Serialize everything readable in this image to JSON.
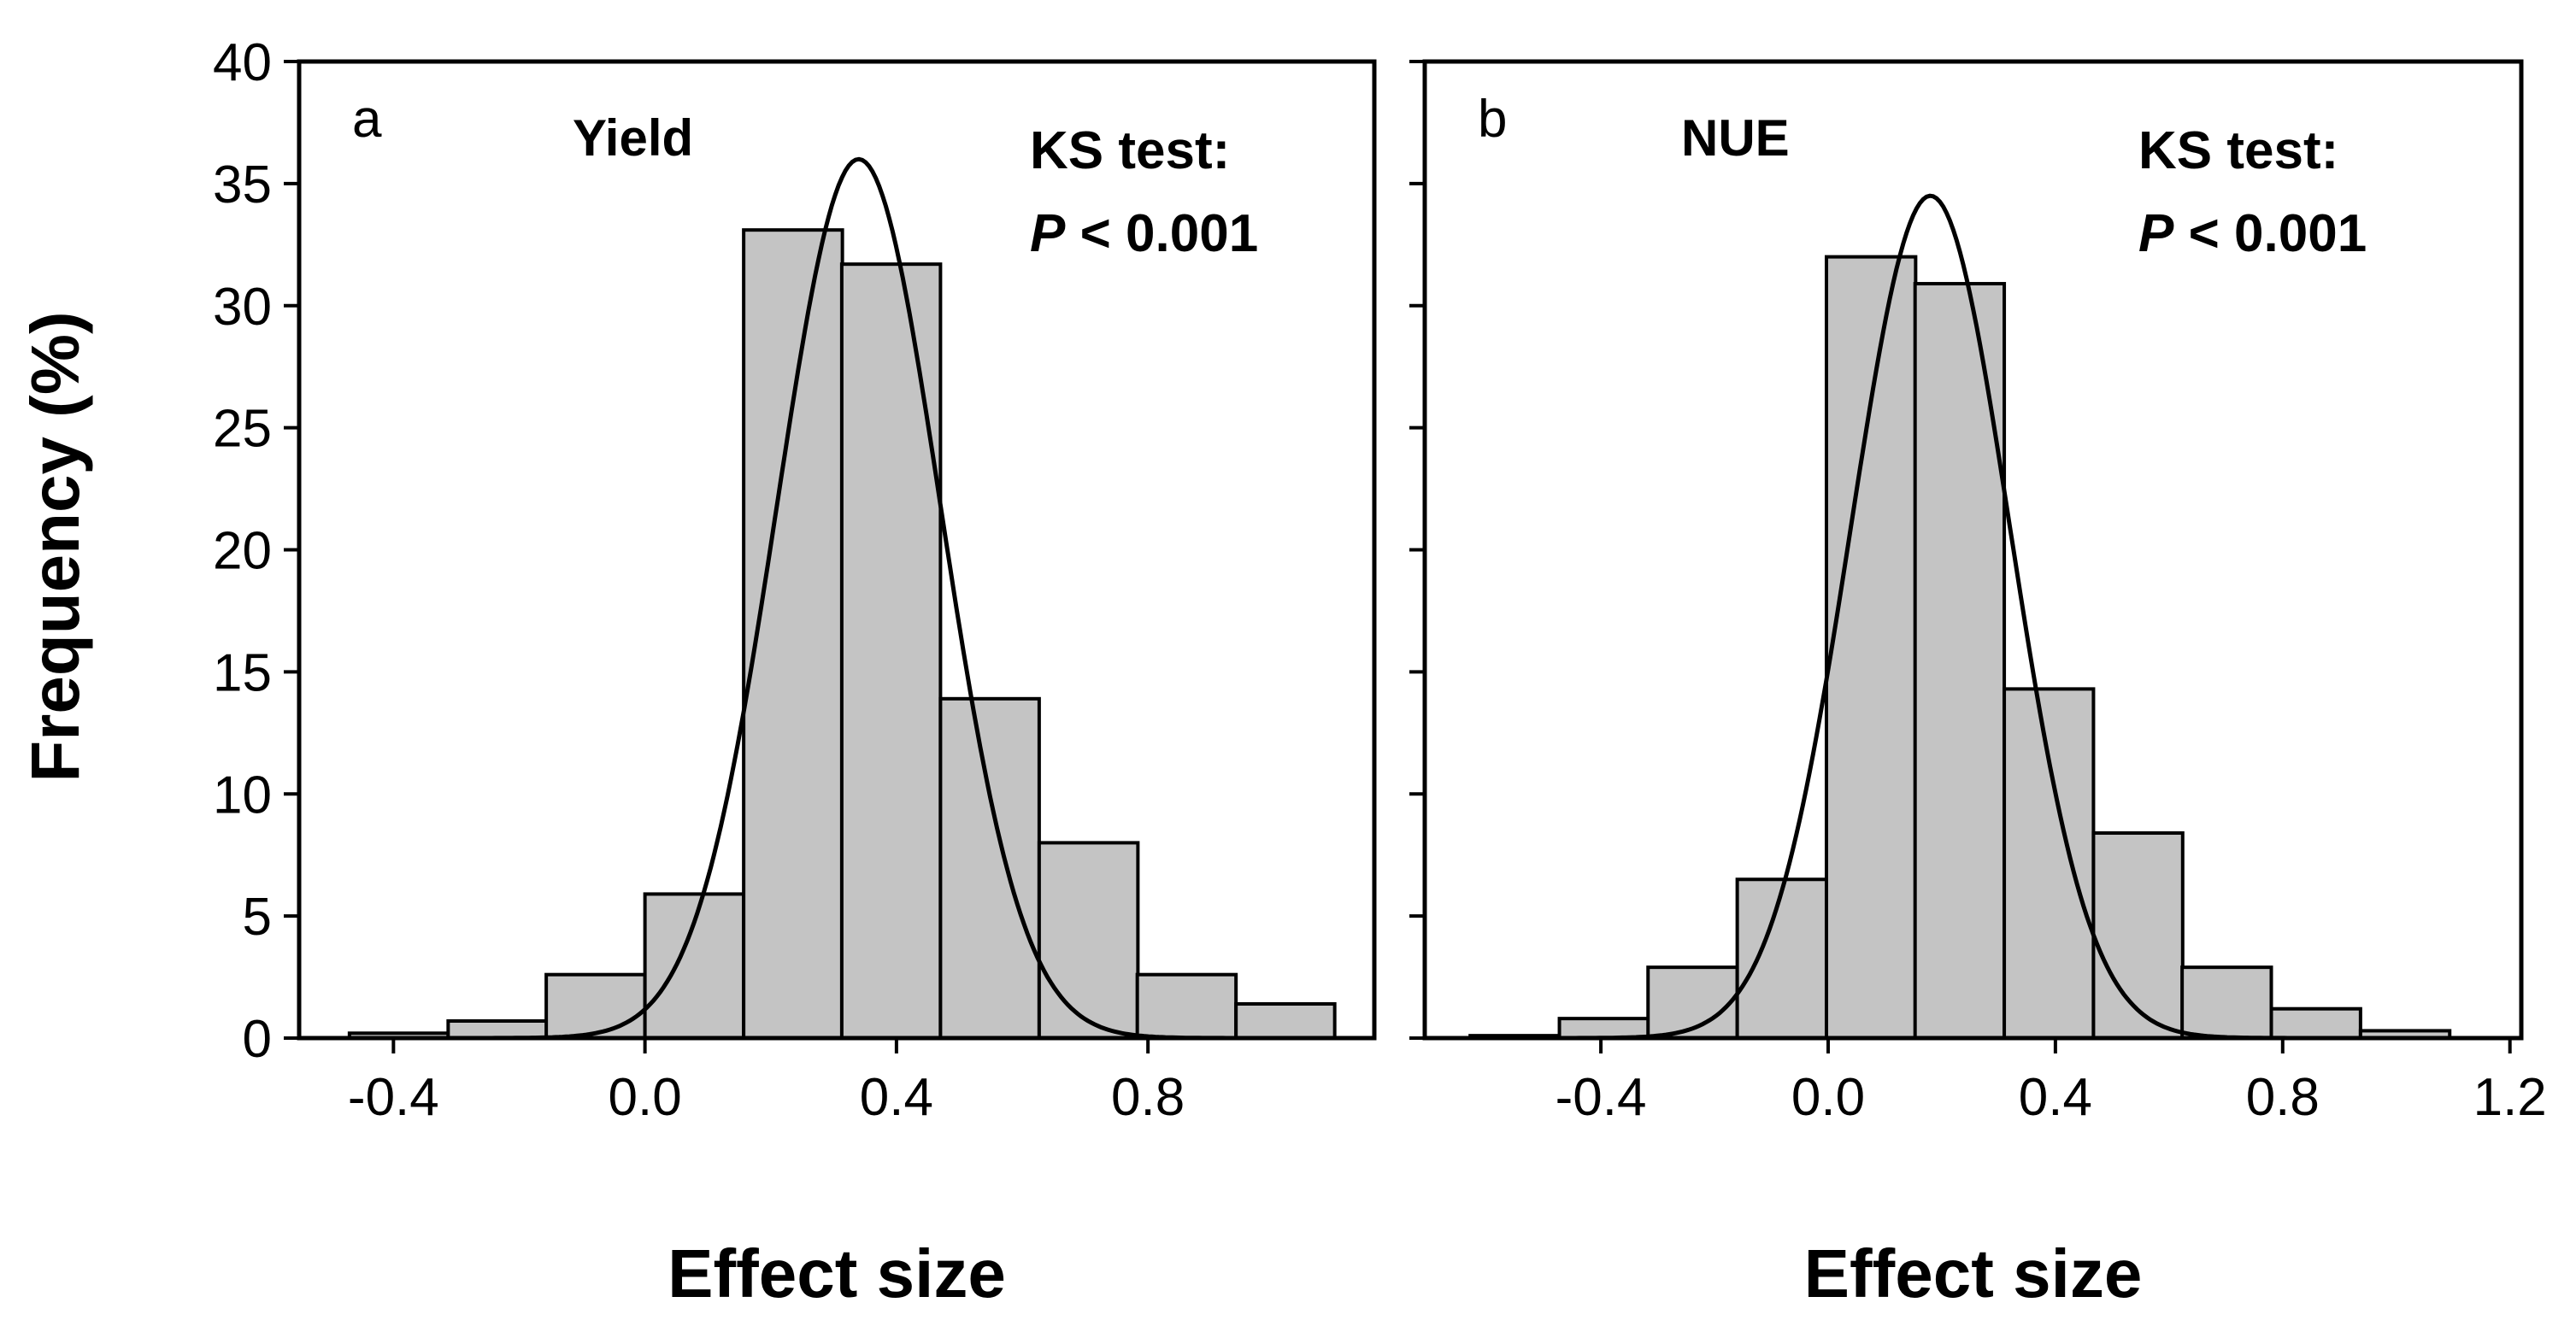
{
  "chart_data": [
    {
      "type": "bar",
      "panel_label": "a",
      "title": "Yield",
      "annotation": [
        "KS test:",
        "P < 0.001"
      ],
      "xlabel": "Effect size",
      "ylabel": "Frequency (%)",
      "ylim": [
        0,
        40
      ],
      "yticks": [
        0,
        5,
        10,
        15,
        20,
        25,
        30,
        35,
        40
      ],
      "xlim": [
        -0.55,
        1.16
      ],
      "xticks": [
        -0.4,
        0.0,
        0.4,
        0.8
      ],
      "xtick_labels": [
        "-0.4",
        "0.0",
        "0.4",
        "0.8"
      ],
      "bin_width": 0.157,
      "bin_starts": [
        -0.47,
        -0.313,
        -0.157,
        0.0,
        0.157,
        0.313,
        0.47,
        0.627,
        0.783,
        0.94
      ],
      "values": [
        0.2,
        0.7,
        2.6,
        5.9,
        33.1,
        31.7,
        13.9,
        8.0,
        2.6,
        1.4
      ],
      "fit_curve": {
        "mean": 0.34,
        "sd": 0.13,
        "peak": 36.0
      },
      "bar_color": "#c4c4c4"
    },
    {
      "type": "bar",
      "panel_label": "b",
      "title": "NUE",
      "annotation": [
        "KS test:",
        "P < 0.001"
      ],
      "xlabel": "Effect size",
      "ylim": [
        0,
        40
      ],
      "yticks": [
        0,
        5,
        10,
        15,
        20,
        25,
        30,
        35,
        40
      ],
      "xlim": [
        -0.71,
        1.22
      ],
      "xticks": [
        -0.4,
        0.0,
        0.4,
        0.8,
        1.2
      ],
      "xtick_labels": [
        "-0.4",
        "0.0",
        "0.4",
        "0.8",
        "1.2"
      ],
      "bin_width": 0.157,
      "bin_starts": [
        -0.63,
        -0.473,
        -0.317,
        -0.16,
        -0.003,
        0.153,
        0.31,
        0.467,
        0.623,
        0.78,
        0.937
      ],
      "values": [
        0.1,
        0.8,
        2.9,
        6.5,
        32.0,
        30.9,
        14.3,
        8.4,
        2.9,
        1.2,
        0.3
      ],
      "fit_curve": {
        "mean": 0.18,
        "sd": 0.14,
        "peak": 34.5
      },
      "bar_color": "#c4c4c4"
    }
  ]
}
